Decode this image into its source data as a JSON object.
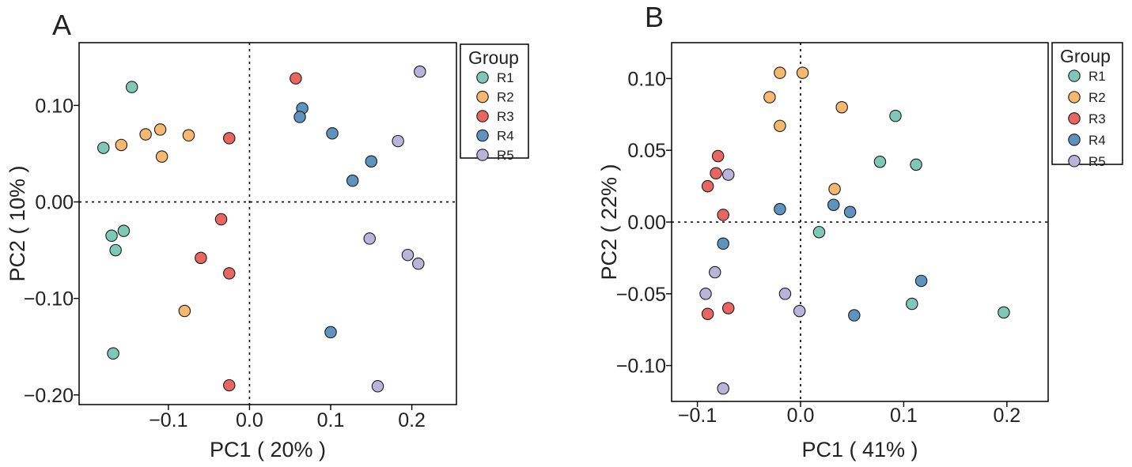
{
  "groups": [
    {
      "name": "R1",
      "color": "#7fc8b6"
    },
    {
      "name": "R2",
      "color": "#f4b86e"
    },
    {
      "name": "R3",
      "color": "#e8665f"
    },
    {
      "name": "R4",
      "color": "#5f93bf"
    },
    {
      "name": "R5",
      "color": "#b9b4d9"
    }
  ],
  "chart_data": [
    {
      "type": "scatter",
      "panel_label": "A",
      "xlabel": "PC1 ( 20% )",
      "ylabel": "PC2 ( 10% )",
      "xlim": [
        -0.21,
        0.255
      ],
      "ylim": [
        -0.21,
        0.165
      ],
      "xticks": [
        -0.1,
        0.0,
        0.1,
        0.2
      ],
      "xtick_labels": [
        "−0.1",
        "0.0",
        "0.1",
        "0.2"
      ],
      "yticks": [
        0.1,
        0.0,
        -0.1,
        -0.2
      ],
      "ytick_labels": [
        "0.10",
        "0.00",
        "−0.10",
        "−0.20"
      ],
      "reference_lines": {
        "x": 0,
        "y": 0
      },
      "legend": {
        "title": "Group",
        "position": "right"
      },
      "series": [
        {
          "name": "R1",
          "points": [
            [
              -0.145,
              0.119
            ],
            [
              -0.18,
              0.056
            ],
            [
              -0.17,
              -0.035
            ],
            [
              -0.155,
              -0.03
            ],
            [
              -0.165,
              -0.05
            ],
            [
              -0.168,
              -0.157
            ]
          ]
        },
        {
          "name": "R2",
          "points": [
            [
              -0.158,
              0.059
            ],
            [
              -0.128,
              0.07
            ],
            [
              -0.11,
              0.075
            ],
            [
              -0.108,
              0.047
            ],
            [
              -0.075,
              0.069
            ],
            [
              -0.08,
              -0.113
            ]
          ]
        },
        {
          "name": "R3",
          "points": [
            [
              0.057,
              0.128
            ],
            [
              -0.025,
              0.066
            ],
            [
              -0.035,
              -0.018
            ],
            [
              -0.06,
              -0.058
            ],
            [
              -0.025,
              -0.074
            ],
            [
              -0.025,
              -0.19
            ]
          ]
        },
        {
          "name": "R4",
          "points": [
            [
              0.065,
              0.097
            ],
            [
              0.062,
              0.088
            ],
            [
              0.102,
              0.071
            ],
            [
              0.15,
              0.042
            ],
            [
              0.127,
              0.022
            ],
            [
              0.1,
              -0.135
            ]
          ]
        },
        {
          "name": "R5",
          "points": [
            [
              0.21,
              0.135
            ],
            [
              0.183,
              0.063
            ],
            [
              0.148,
              -0.038
            ],
            [
              0.195,
              -0.055
            ],
            [
              0.208,
              -0.064
            ],
            [
              0.158,
              -0.191
            ]
          ]
        }
      ]
    },
    {
      "type": "scatter",
      "panel_label": "B",
      "xlabel": "PC1 ( 41% )",
      "ylabel": "PC2 ( 22% )",
      "xlim": [
        -0.125,
        0.24
      ],
      "ylim": [
        -0.125,
        0.125
      ],
      "xticks": [
        -0.1,
        0.0,
        0.1,
        0.2
      ],
      "xtick_labels": [
        "−0.1",
        "0.0",
        "0.1",
        "0.2"
      ],
      "yticks": [
        0.1,
        0.05,
        0.0,
        -0.05,
        -0.1
      ],
      "ytick_labels": [
        "0.10",
        "0.05",
        "0.00",
        "−0.05",
        "−0.10"
      ],
      "reference_lines": {
        "x": 0,
        "y": 0
      },
      "legend": {
        "title": "Group",
        "position": "right"
      },
      "series": [
        {
          "name": "R1",
          "points": [
            [
              0.092,
              0.074
            ],
            [
              0.077,
              0.042
            ],
            [
              0.112,
              0.04
            ],
            [
              0.018,
              -0.007
            ],
            [
              0.108,
              -0.057
            ],
            [
              0.197,
              -0.063
            ]
          ]
        },
        {
          "name": "R2",
          "points": [
            [
              -0.02,
              0.104
            ],
            [
              0.002,
              0.104
            ],
            [
              -0.03,
              0.087
            ],
            [
              -0.02,
              0.067
            ],
            [
              0.04,
              0.08
            ],
            [
              0.033,
              0.023
            ]
          ]
        },
        {
          "name": "R3",
          "points": [
            [
              -0.08,
              0.046
            ],
            [
              -0.082,
              0.034
            ],
            [
              -0.09,
              0.025
            ],
            [
              -0.075,
              0.005
            ],
            [
              -0.07,
              -0.06
            ],
            [
              -0.09,
              -0.064
            ]
          ]
        },
        {
          "name": "R4",
          "points": [
            [
              -0.02,
              0.009
            ],
            [
              0.032,
              0.012
            ],
            [
              0.048,
              0.007
            ],
            [
              -0.075,
              -0.015
            ],
            [
              0.117,
              -0.041
            ],
            [
              0.052,
              -0.065
            ]
          ]
        },
        {
          "name": "R5",
          "points": [
            [
              -0.07,
              0.033
            ],
            [
              -0.083,
              -0.035
            ],
            [
              -0.092,
              -0.05
            ],
            [
              -0.015,
              -0.05
            ],
            [
              -0.001,
              -0.062
            ],
            [
              -0.075,
              -0.116
            ]
          ]
        }
      ]
    }
  ]
}
